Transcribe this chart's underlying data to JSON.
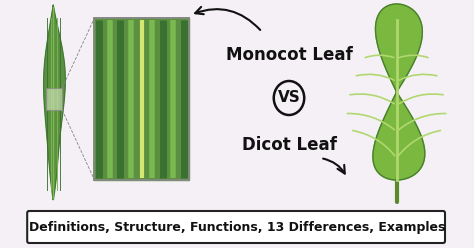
{
  "bg_color": "#f5f0f5",
  "title_text": "Monocot Leaf",
  "vs_text": "VS",
  "dicot_text": "Dicot Leaf",
  "bottom_text": "Definitions, Structure, Functions, 13 Differences, Examples",
  "bottom_box_color": "#ffffff",
  "bottom_border_color": "#222222",
  "text_color": "#111111",
  "mono_outer": "#5a9040",
  "mono_mid": "#7ab850",
  "mono_light": "#a8d870",
  "mono_yellow": "#d4e870",
  "mono_dark": "#3a7030",
  "dicot_fill": "#7ab840",
  "dicot_vein": "#b0d870",
  "dicot_edge": "#4a8030",
  "dicot_stem": "#5a8a2a",
  "arrow_color": "#111111",
  "box_edge": "#888888"
}
